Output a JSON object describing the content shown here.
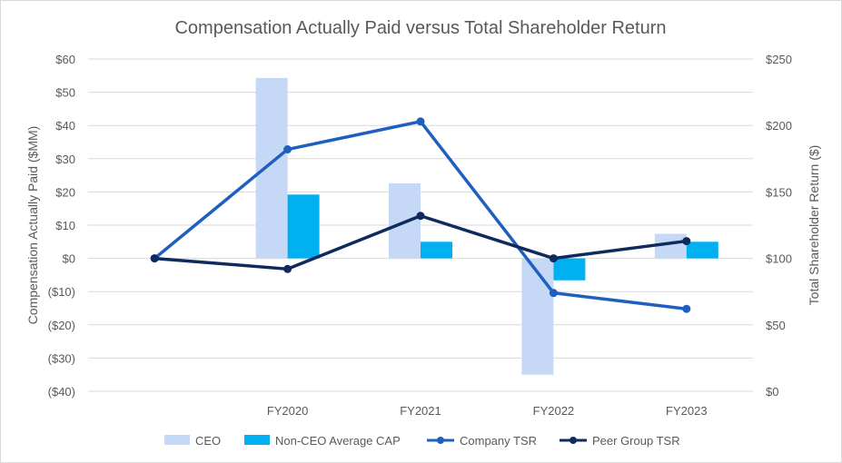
{
  "chart_data": {
    "type": "bar+line",
    "title": "Compensation Actually Paid versus Total Shareholder Return",
    "categories": [
      "",
      "FY2020",
      "FY2021",
      "FY2022",
      "FY2023"
    ],
    "y_left": {
      "label": "Compensation Actually Paid ($MM)",
      "min": -40,
      "max": 60,
      "step": 10,
      "tick_labels": [
        "$60",
        "$50",
        "$40",
        "$30",
        "$20",
        "$10",
        "$0",
        "($10)",
        "($20)",
        "($30)",
        "($40)"
      ]
    },
    "y_right": {
      "label": "Total Shareholder Return ($)",
      "min": 0,
      "max": 250,
      "step": 50,
      "tick_labels": [
        "$250",
        "$200",
        "$150",
        "$100",
        "$50",
        "$0"
      ]
    },
    "grid": true,
    "legend_position": "bottom",
    "series": [
      {
        "name": "CEO",
        "kind": "bar",
        "axis": "left",
        "color": "#c5d9f7",
        "values": [
          null,
          54.3,
          22.6,
          -35.0,
          7.4
        ]
      },
      {
        "name": "Non-CEO Average CAP",
        "kind": "bar",
        "axis": "left",
        "color": "#00b0f0",
        "values": [
          null,
          19.2,
          5.0,
          -6.6,
          5.0
        ]
      },
      {
        "name": "Company TSR",
        "kind": "line",
        "axis": "right",
        "color": "#1f5fbf",
        "values": [
          100,
          182,
          203,
          74,
          62
        ]
      },
      {
        "name": "Peer Group TSR",
        "kind": "line",
        "axis": "right",
        "color": "#0f2a5c",
        "values": [
          100,
          92,
          132,
          100,
          113
        ]
      }
    ]
  }
}
